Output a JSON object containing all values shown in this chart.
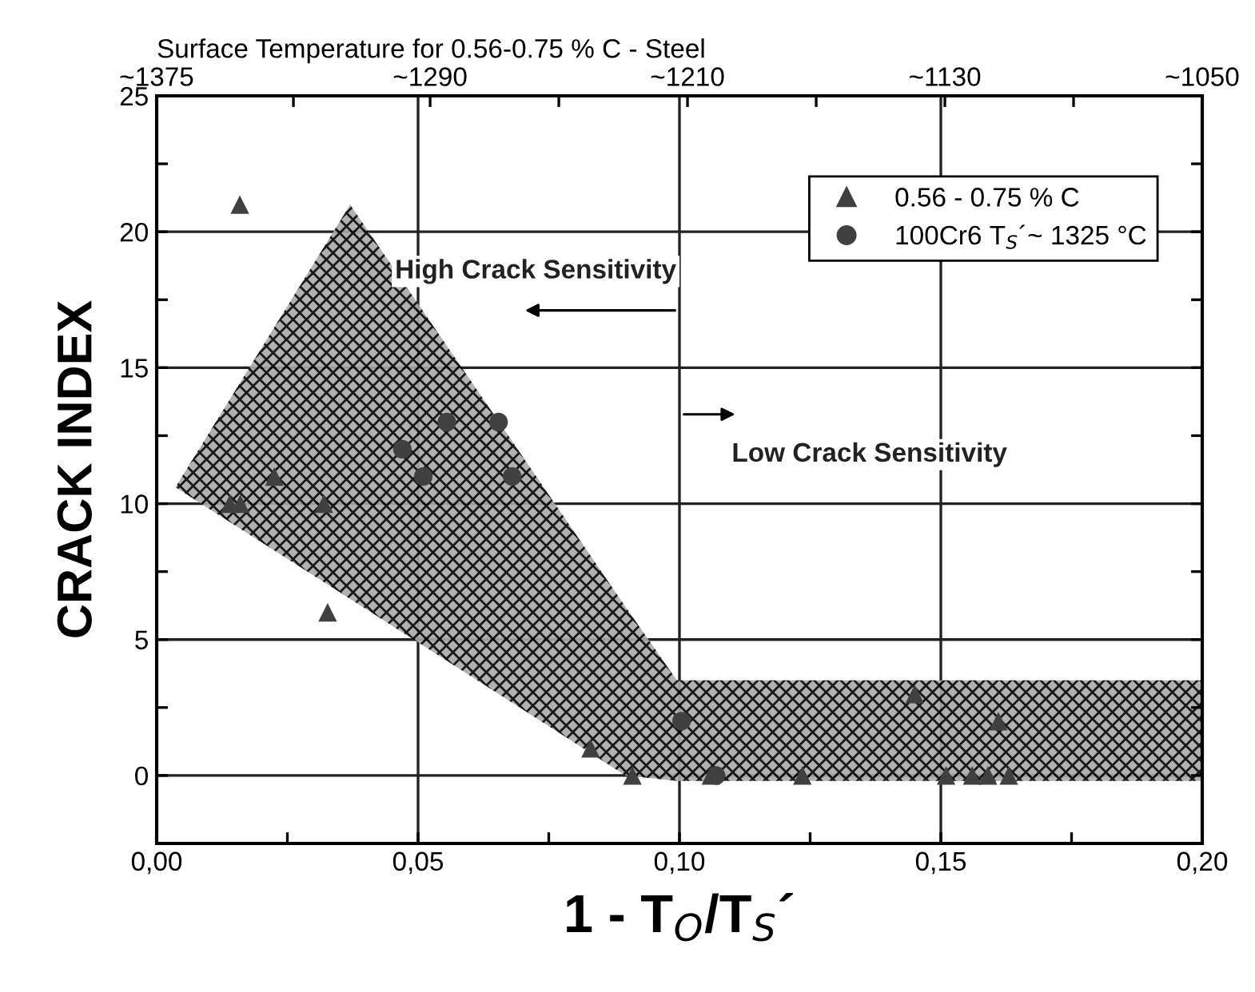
{
  "chart_data": {
    "type": "scatter",
    "x2label": "Surface Temperature for 0.56-0.75 % C - Steel",
    "xlabel": "1 - T$_{O}$/T$_{S}$´",
    "ylabel": "CRACK INDEX",
    "series": [
      {
        "type": "line",
        "color": "#a8a8a8",
        "x": [
          0.0036,
          0.037,
          0.0897,
          0.0995,
          0.2
        ],
        "values": [
          null,
          null,
          null,
          null,
          null
        ],
        "upper": [
          10.6,
          21.0,
          6.2,
          3.5,
          3.5
        ],
        "lower": [
          10.6,
          6.5,
          0.0,
          -0.2,
          -0.2
        ]
      },
      {
        "name": "0.56 - 0.75 % C",
        "marker": "triangle",
        "color": "#404040",
        "x": [
          0.0159,
          0.014,
          0.016,
          0.0225,
          0.032,
          0.0327,
          0.083,
          0.091,
          0.106,
          0.1235,
          0.145,
          0.151,
          0.156,
          0.159,
          0.161,
          0.163
        ],
        "values": [
          21,
          10,
          10,
          11,
          10,
          6,
          1,
          0,
          0,
          0,
          3,
          0,
          0,
          0,
          2,
          0
        ]
      },
      {
        "name": "100Cr6 T$_{S}$´~ 1325 °C",
        "marker": "circle",
        "color": "#404040",
        "x": [
          0.047,
          0.051,
          0.0555,
          0.0654,
          0.068,
          0.1004,
          0.107
        ],
        "values": [
          12,
          11,
          13,
          13,
          11,
          2,
          0
        ]
      }
    ],
    "xlim": [
      0,
      0.2
    ],
    "xticks": [
      {
        "value": 0,
        "label": "0,00"
      },
      {
        "value": 0.025,
        "label": null
      },
      {
        "value": 0.05,
        "label": "0,05"
      },
      {
        "value": 0.075,
        "label": null
      },
      {
        "value": 0.1,
        "label": "0,10"
      },
      {
        "value": 0.125,
        "label": null
      },
      {
        "value": 0.15,
        "label": "0,15"
      },
      {
        "value": 0.175,
        "label": null
      },
      {
        "value": 0.2,
        "label": "0,20"
      }
    ],
    "x2lim": [
      1375,
      1050
    ],
    "x2ticks": [
      {
        "value": 1375,
        "label": "~1375"
      },
      {
        "value": 1332.5,
        "label": null
      },
      {
        "value": 1290,
        "label": "~1290"
      },
      {
        "value": 1250,
        "label": null
      },
      {
        "value": 1210,
        "label": "~1210"
      },
      {
        "value": 1170,
        "label": null
      },
      {
        "value": 1130,
        "label": "~1130"
      },
      {
        "value": 1090,
        "label": null
      },
      {
        "value": 1050,
        "label": "~1050"
      }
    ],
    "ylim": [
      -2.5,
      25
    ],
    "yticks": [
      {
        "value": -2.5,
        "label": null
      },
      0,
      {
        "value": 2.5,
        "label": null
      },
      5,
      {
        "value": 7.5,
        "label": null
      },
      10,
      {
        "value": 12.5,
        "label": null
      },
      15,
      {
        "value": 17.5,
        "label": null
      },
      20,
      {
        "value": 22.5,
        "label": null
      },
      25
    ],
    "grid": true,
    "legend": "top right",
    "annotations": [
      "High Crack Sensitivity",
      "Low Crack Sensitivity"
    ]
  }
}
